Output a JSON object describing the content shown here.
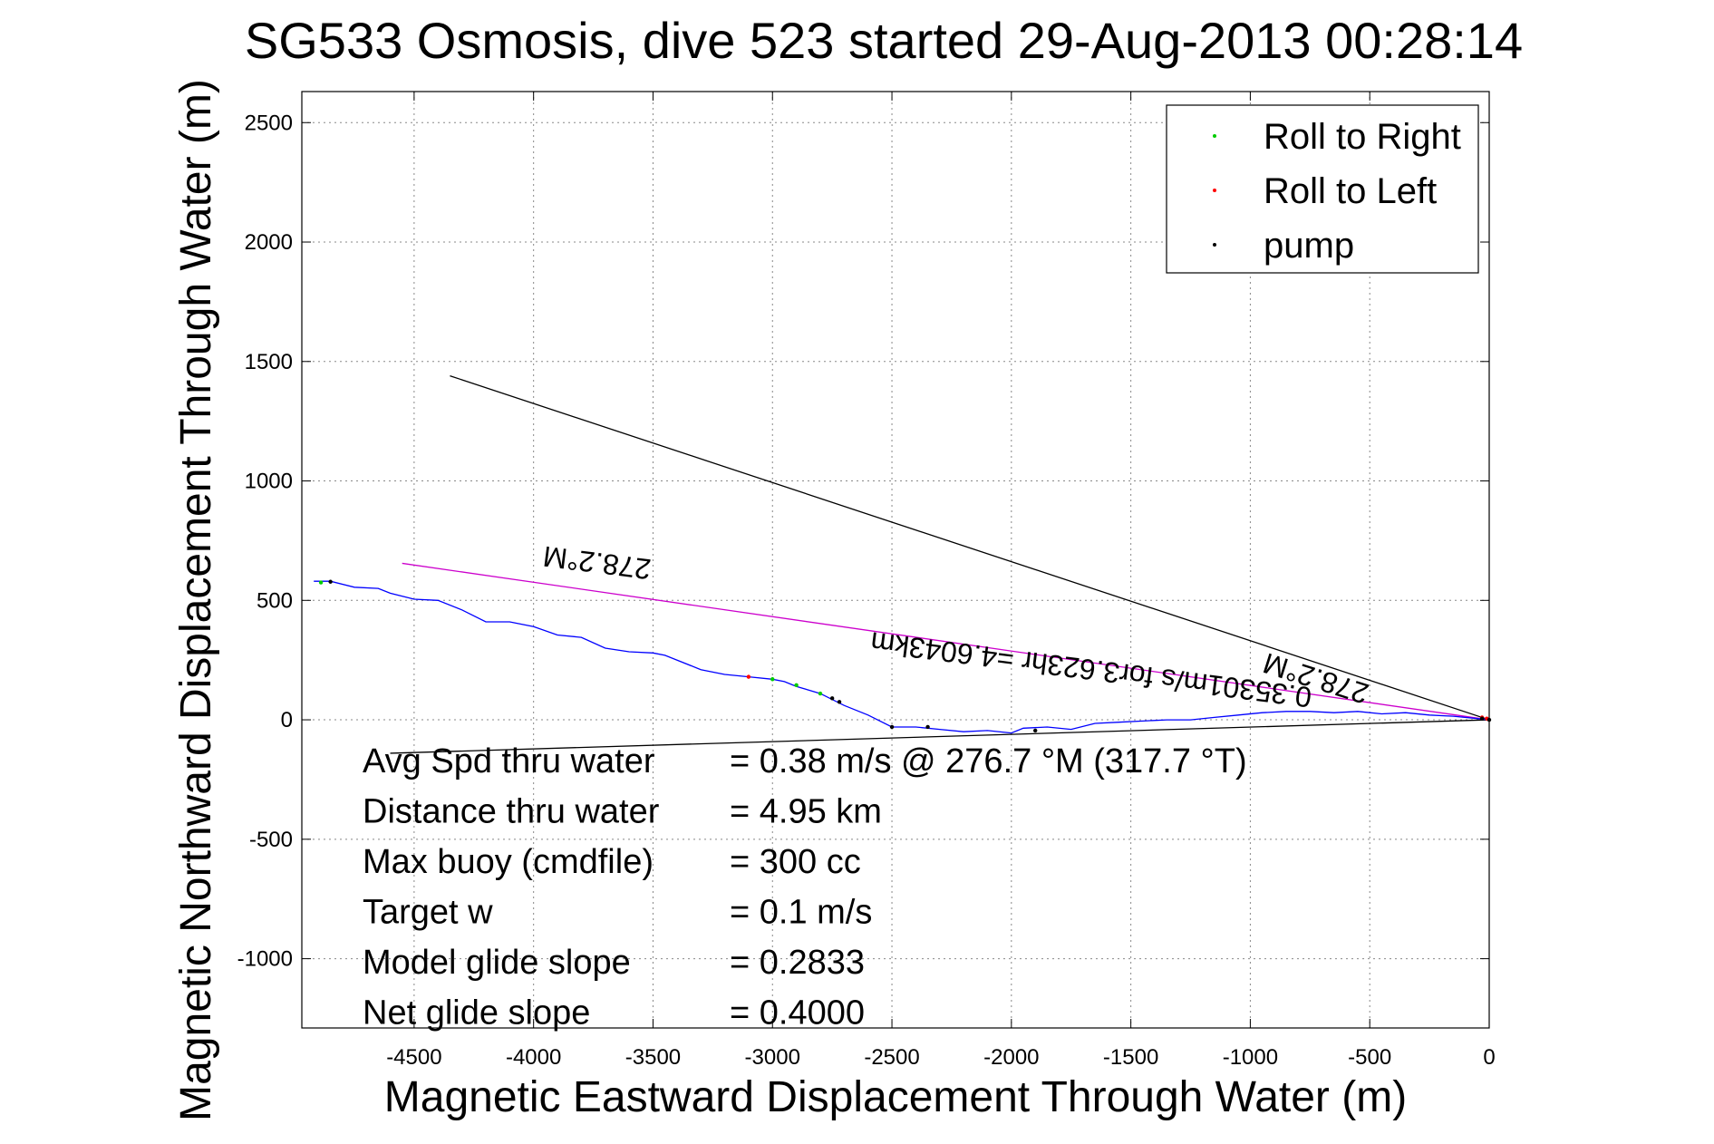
{
  "chart_data": {
    "type": "line",
    "title": "SG533 Osmosis, dive 523 started 29-Aug-2013 00:28:14",
    "xlabel": "Magnetic Eastward Displacement Through Water (m)",
    "ylabel": "Magnetic Northward Displacement Through Water (m)",
    "xlim": [
      -4970,
      0
    ],
    "ylim": [
      -1290,
      2630
    ],
    "xticks": [
      -4500,
      -4000,
      -3500,
      -3000,
      -2500,
      -2000,
      -1500,
      -1000,
      -500,
      0
    ],
    "yticks": [
      -1000,
      -500,
      0,
      500,
      1000,
      1500,
      2000,
      2500
    ],
    "grid": true,
    "legend_position": "top-right",
    "legend": [
      {
        "label": "Roll to Right",
        "color": "#00cc00"
      },
      {
        "label": "Roll to Left",
        "color": "#ff0000"
      },
      {
        "label": "pump",
        "color": "#000000"
      }
    ],
    "series": [
      {
        "name": "",
        "color": "#0000ff",
        "x": [
          -4920,
          -4850,
          -4750,
          -4650,
          -4600,
          -4500,
          -4400,
          -4300,
          -4200,
          -4100,
          -4000,
          -3900,
          -3800,
          -3700,
          -3600,
          -3500,
          -3450,
          -3300,
          -3200,
          -3100,
          -3000,
          -2950,
          -2900,
          -2800,
          -2700,
          -2600,
          -2500,
          -2400,
          -2300,
          -2200,
          -2100,
          -2000,
          -1950,
          -1850,
          -1750,
          -1650,
          -1550,
          -1450,
          -1350,
          -1250,
          -1150,
          -1050,
          -950,
          -850,
          -750,
          -650,
          -550,
          -450,
          -350,
          -250,
          -150,
          -50,
          0
        ],
        "y": [
          580,
          580,
          555,
          550,
          530,
          505,
          500,
          460,
          410,
          410,
          390,
          355,
          345,
          300,
          285,
          280,
          270,
          210,
          190,
          180,
          170,
          160,
          140,
          110,
          60,
          20,
          -30,
          -30,
          -40,
          -50,
          -45,
          -55,
          -35,
          -30,
          -40,
          -15,
          -10,
          -5,
          0,
          0,
          10,
          20,
          30,
          35,
          35,
          30,
          35,
          25,
          30,
          20,
          15,
          5,
          0
        ]
      }
    ],
    "markers": {
      "roll_right": {
        "x": [
          -4890,
          -3000,
          -2900,
          -2800
        ],
        "y": [
          575,
          170,
          145,
          110
        ]
      },
      "roll_left": {
        "x": [
          -3100,
          -30,
          -10
        ],
        "y": [
          180,
          10,
          5
        ]
      },
      "pump": {
        "x": [
          -4850,
          -2750,
          -2720,
          -2500,
          -2350,
          -1900,
          -30,
          0
        ],
        "y": [
          578,
          90,
          75,
          -30,
          -30,
          -45,
          5,
          0
        ]
      }
    },
    "lines": [
      {
        "name": "black-line-upper",
        "color": "#000000",
        "x": [
          -4350,
          0
        ],
        "y": [
          1440,
          0
        ]
      },
      {
        "name": "black-line-lower",
        "color": "#000000",
        "x": [
          -4600,
          0
        ],
        "y": [
          -140,
          0
        ]
      },
      {
        "name": "magenta-line",
        "color": "#cc00cc",
        "x": [
          -4550,
          0
        ],
        "y": [
          655,
          0
        ]
      }
    ],
    "annotations": {
      "heading_left": "278.2°M",
      "heading_right": "278.2°M",
      "speed": "0.35301m/s for3.623hr =4.6043km"
    },
    "stats": [
      {
        "label": "Avg Spd thru water",
        "value": "=  0.38 m/s @ 276.7 °M (317.7 °T)"
      },
      {
        "label": "Distance thru water",
        "value": "=  4.95 km"
      },
      {
        "label": "Max buoy (cmdfile)",
        "value": "= 300 cc"
      },
      {
        "label": "Target w",
        "value": "= 0.1 m/s"
      },
      {
        "label": "Model glide slope",
        "value": "= 0.2833"
      },
      {
        "label": "Net glide slope",
        "value": "= 0.4000"
      }
    ]
  }
}
